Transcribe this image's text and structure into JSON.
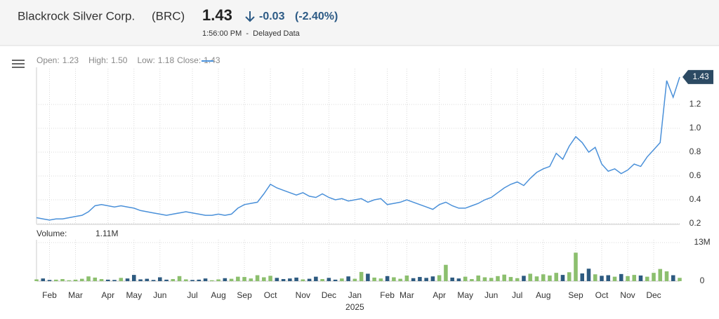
{
  "header": {
    "company": "Blackrock Silver Corp.",
    "ticker": "(BRC)",
    "last_price": 1.43,
    "change": -0.03,
    "change_pct": {
      "value": -2.4,
      "label": "(-2.40%)"
    },
    "timestamp": "1:56:00 PM  -  Delayed Data"
  },
  "chart_data": {
    "type": "line",
    "legend": [
      {
        "label": "Open:",
        "value": 1.23
      },
      {
        "label": "High:",
        "value": 1.5,
        "value_label": "1.50"
      },
      {
        "label": "Low:",
        "value": 1.18
      },
      {
        "label": "Close:",
        "value": 1.43
      }
    ],
    "categories": [
      null,
      null,
      "Feb",
      null,
      null,
      null,
      "Mar",
      null,
      null,
      null,
      null,
      "Apr",
      null,
      null,
      null,
      "May",
      null,
      null,
      null,
      "Jun",
      null,
      null,
      null,
      null,
      "Jul",
      null,
      null,
      null,
      "Aug",
      null,
      null,
      null,
      "Sep",
      null,
      null,
      null,
      "Oct",
      null,
      null,
      null,
      null,
      "Nov",
      null,
      null,
      null,
      "Dec",
      null,
      null,
      null,
      "Jan",
      null,
      null,
      null,
      null,
      "Feb",
      null,
      null,
      "Mar",
      null,
      null,
      null,
      null,
      "Apr",
      null,
      null,
      null,
      "May",
      null,
      null,
      null,
      "Jun",
      null,
      null,
      null,
      "Jul",
      null,
      null,
      null,
      "Aug",
      null,
      null,
      null,
      null,
      "Sep",
      null,
      null,
      null,
      "Oct",
      null,
      null,
      null,
      "Nov",
      null,
      null,
      null,
      "Dec",
      null,
      null,
      null,
      null
    ],
    "x_year_label": "2025",
    "series": [
      {
        "name": "Close",
        "color": "#4a90d9",
        "values": [
          0.25,
          0.24,
          0.23,
          0.24,
          0.24,
          0.25,
          0.26,
          0.27,
          0.3,
          0.35,
          0.36,
          0.35,
          0.34,
          0.35,
          0.34,
          0.33,
          0.31,
          0.3,
          0.29,
          0.28,
          0.27,
          0.28,
          0.29,
          0.3,
          0.29,
          0.28,
          0.27,
          0.27,
          0.28,
          0.27,
          0.28,
          0.33,
          0.36,
          0.37,
          0.38,
          0.45,
          0.53,
          0.5,
          0.48,
          0.46,
          0.44,
          0.46,
          0.43,
          0.42,
          0.45,
          0.42,
          0.4,
          0.41,
          0.39,
          0.4,
          0.41,
          0.38,
          0.4,
          0.41,
          0.36,
          0.37,
          0.38,
          0.4,
          0.38,
          0.36,
          0.34,
          0.32,
          0.36,
          0.38,
          0.35,
          0.33,
          0.33,
          0.35,
          0.37,
          0.4,
          0.42,
          0.46,
          0.5,
          0.53,
          0.55,
          0.52,
          0.58,
          0.63,
          0.66,
          0.68,
          0.79,
          0.74,
          0.85,
          0.93,
          0.88,
          0.8,
          0.84,
          0.7,
          0.64,
          0.66,
          0.62,
          0.65,
          0.7,
          0.68,
          0.76,
          0.82,
          0.88,
          1.4,
          1.26,
          1.43
        ]
      }
    ],
    "ylim": [
      0.2,
      1.5
    ],
    "yticks": [
      0.2,
      0.4,
      0.6,
      0.8,
      {
        "value": 1.0,
        "label": "1.0"
      },
      1.2
    ],
    "grid": true,
    "volume": {
      "label": "Volume:",
      "last": {
        "value": 1110000,
        "label": "1.11M"
      },
      "up_color": "#8cbf6e",
      "down_color": "#2d5a80",
      "values": [
        600000,
        900000,
        400000,
        500000,
        700000,
        300000,
        500000,
        800000,
        1600000,
        1200000,
        700000,
        500000,
        400000,
        1100000,
        900000,
        2100000,
        600000,
        800000,
        400000,
        1300000,
        500000,
        700000,
        1700000,
        600000,
        400000,
        500000,
        900000,
        300000,
        600000,
        1000000,
        800000,
        1500000,
        1400000,
        900000,
        2000000,
        1300000,
        1800000,
        1100000,
        700000,
        900000,
        1200000,
        600000,
        800000,
        1500000,
        700000,
        1100000,
        500000,
        900000,
        1600000,
        800000,
        3100000,
        2500000,
        1200000,
        900000,
        1700000,
        1300000,
        800000,
        1900000,
        1000000,
        1400000,
        1100000,
        1600000,
        2000000,
        5500000,
        1200000,
        900000,
        1500000,
        700000,
        1900000,
        1300000,
        1100000,
        1700000,
        2200000,
        1400000,
        1000000,
        1800000,
        2500000,
        1600000,
        2300000,
        1900000,
        2800000,
        2100000,
        3000000,
        9600000,
        2600000,
        4200000,
        2300000,
        1800000,
        2000000,
        1500000,
        2400000,
        1700000,
        2100000,
        1900000,
        1500000,
        2800000,
        4100000,
        3300000,
        2000000,
        1110000
      ],
      "ylim": [
        0,
        13000000
      ],
      "yticks": [
        0,
        {
          "value": 13000000,
          "label": "13M"
        }
      ]
    }
  }
}
